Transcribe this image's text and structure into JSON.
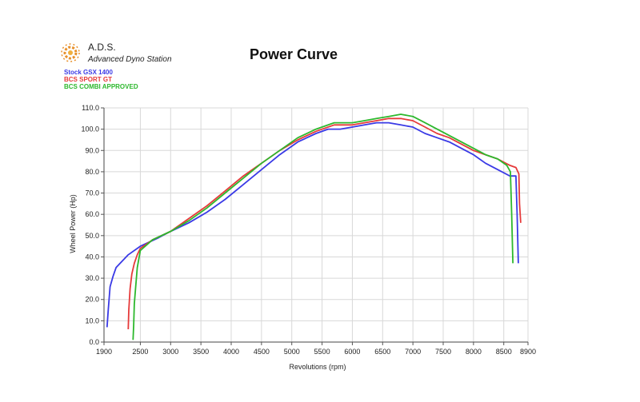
{
  "logo": {
    "name": "A.D.S.",
    "subtitle": "Advanced Dyno Station"
  },
  "chart_data": {
    "type": "line",
    "title": "Power Curve",
    "xlabel": "Revolutions (rpm)",
    "ylabel": "Wheel Power (Hp)",
    "xlim": [
      1900,
      8900
    ],
    "ylim": [
      0,
      110
    ],
    "x_ticks": [
      {
        "value": 1900,
        "label": "1900"
      },
      {
        "value": 2500,
        "label": "2500"
      },
      {
        "value": 3000,
        "label": "3000"
      },
      {
        "value": 3500,
        "label": "3500"
      },
      {
        "value": 4000,
        "label": "4000"
      },
      {
        "value": 4500,
        "label": "4500"
      },
      {
        "value": 5000,
        "label": "5000"
      },
      {
        "value": 5500,
        "label": "5500"
      },
      {
        "value": 6000,
        "label": "6000"
      },
      {
        "value": 6500,
        "label": "6500"
      },
      {
        "value": 7000,
        "label": "7000"
      },
      {
        "value": 7500,
        "label": "7500"
      },
      {
        "value": 8000,
        "label": "8000"
      },
      {
        "value": 8500,
        "label": "8500"
      },
      {
        "value": 8900,
        "label": "8900"
      }
    ],
    "y_ticks": [
      {
        "value": 0,
        "label": "0.0"
      },
      {
        "value": 10,
        "label": "10.0"
      },
      {
        "value": 20,
        "label": "20.0"
      },
      {
        "value": 30,
        "label": "30.0"
      },
      {
        "value": 40,
        "label": "40.0"
      },
      {
        "value": 50,
        "label": "50.0"
      },
      {
        "value": 60,
        "label": "60.0"
      },
      {
        "value": 70,
        "label": "70.0"
      },
      {
        "value": 80,
        "label": "80.0"
      },
      {
        "value": 90,
        "label": "90.0"
      },
      {
        "value": 100,
        "label": "100.0"
      },
      {
        "value": 110,
        "label": "110.0"
      }
    ],
    "grid": true,
    "legend_position": "top-left",
    "series": [
      {
        "name": "Stock GSX 1400",
        "color": "#3a3ae6",
        "points": [
          [
            1950,
            7
          ],
          [
            1970,
            15
          ],
          [
            2000,
            26
          ],
          [
            2050,
            31
          ],
          [
            2100,
            35
          ],
          [
            2200,
            38
          ],
          [
            2300,
            41
          ],
          [
            2500,
            45
          ],
          [
            2800,
            49
          ],
          [
            3000,
            52
          ],
          [
            3300,
            56
          ],
          [
            3600,
            61
          ],
          [
            3900,
            67
          ],
          [
            4200,
            74
          ],
          [
            4500,
            81
          ],
          [
            4800,
            88
          ],
          [
            5100,
            94
          ],
          [
            5400,
            98
          ],
          [
            5600,
            100
          ],
          [
            5800,
            100
          ],
          [
            6000,
            101
          ],
          [
            6200,
            102
          ],
          [
            6400,
            103
          ],
          [
            6600,
            103
          ],
          [
            6800,
            102
          ],
          [
            7000,
            101
          ],
          [
            7200,
            98
          ],
          [
            7400,
            96
          ],
          [
            7600,
            94
          ],
          [
            7800,
            91
          ],
          [
            8000,
            88
          ],
          [
            8200,
            84
          ],
          [
            8400,
            81
          ],
          [
            8600,
            78
          ],
          [
            8700,
            78
          ],
          [
            8720,
            60
          ],
          [
            8740,
            37
          ]
        ]
      },
      {
        "name": "BCS SPORT GT",
        "color": "#e63a3a",
        "points": [
          [
            2300,
            6
          ],
          [
            2310,
            15
          ],
          [
            2330,
            25
          ],
          [
            2360,
            32
          ],
          [
            2400,
            37
          ],
          [
            2450,
            41
          ],
          [
            2500,
            44
          ],
          [
            2700,
            48
          ],
          [
            3000,
            52
          ],
          [
            3300,
            58
          ],
          [
            3600,
            64
          ],
          [
            3900,
            71
          ],
          [
            4200,
            78
          ],
          [
            4500,
            84
          ],
          [
            4800,
            90
          ],
          [
            5100,
            95
          ],
          [
            5400,
            99
          ],
          [
            5700,
            102
          ],
          [
            6000,
            102
          ],
          [
            6200,
            103
          ],
          [
            6400,
            104
          ],
          [
            6600,
            105
          ],
          [
            6800,
            105
          ],
          [
            7000,
            104
          ],
          [
            7200,
            101
          ],
          [
            7400,
            98
          ],
          [
            7600,
            96
          ],
          [
            7800,
            93
          ],
          [
            8000,
            90
          ],
          [
            8200,
            88
          ],
          [
            8400,
            86
          ],
          [
            8600,
            83
          ],
          [
            8700,
            82
          ],
          [
            8750,
            79
          ],
          [
            8760,
            65
          ],
          [
            8780,
            56
          ]
        ]
      },
      {
        "name": "BCS COMBI APPROVED",
        "color": "#2db82d",
        "points": [
          [
            2380,
            1
          ],
          [
            2390,
            8
          ],
          [
            2400,
            18
          ],
          [
            2420,
            25
          ],
          [
            2450,
            35
          ],
          [
            2500,
            43
          ],
          [
            2700,
            48
          ],
          [
            3000,
            52
          ],
          [
            3300,
            57
          ],
          [
            3600,
            63
          ],
          [
            3900,
            70
          ],
          [
            4200,
            77
          ],
          [
            4500,
            84
          ],
          [
            4800,
            90
          ],
          [
            5100,
            96
          ],
          [
            5400,
            100
          ],
          [
            5700,
            103
          ],
          [
            6000,
            103
          ],
          [
            6200,
            104
          ],
          [
            6400,
            105
          ],
          [
            6600,
            106
          ],
          [
            6800,
            107
          ],
          [
            7000,
            106
          ],
          [
            7200,
            103
          ],
          [
            7400,
            100
          ],
          [
            7600,
            97
          ],
          [
            7800,
            94
          ],
          [
            8000,
            91
          ],
          [
            8200,
            88
          ],
          [
            8400,
            86
          ],
          [
            8550,
            83
          ],
          [
            8610,
            80
          ],
          [
            8630,
            60
          ],
          [
            8650,
            37
          ]
        ]
      }
    ]
  }
}
